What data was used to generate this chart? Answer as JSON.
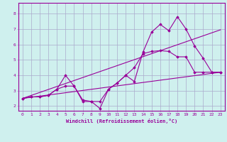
{
  "background_color": "#cff0ee",
  "grid_color": "#aaaacc",
  "line_color": "#990099",
  "marker_color": "#990099",
  "xlabel": "Windchill (Refroidissement éolien,°C)",
  "xlabel_color": "#990099",
  "xlim": [
    -0.5,
    23.5
  ],
  "ylim": [
    1.7,
    8.7
  ],
  "yticks": [
    2,
    3,
    4,
    5,
    6,
    7,
    8
  ],
  "xticks": [
    0,
    1,
    2,
    3,
    4,
    5,
    6,
    7,
    8,
    9,
    10,
    11,
    12,
    13,
    14,
    15,
    16,
    17,
    18,
    19,
    20,
    21,
    22,
    23
  ],
  "series": [
    {
      "x": [
        0,
        1,
        2,
        3,
        4,
        5,
        6,
        7,
        8,
        9,
        10,
        11,
        12,
        13,
        14,
        15,
        16,
        17,
        18,
        19,
        20,
        21,
        22,
        23
      ],
      "y": [
        2.5,
        2.6,
        2.6,
        2.7,
        3.1,
        4.0,
        3.3,
        2.3,
        2.3,
        1.85,
        3.1,
        3.5,
        4.0,
        3.6,
        5.5,
        6.8,
        7.3,
        6.9,
        7.8,
        7.0,
        5.9,
        5.1,
        4.2,
        4.2
      ],
      "marker": true
    },
    {
      "x": [
        0,
        1,
        2,
        3,
        4,
        5,
        6,
        7,
        8,
        9,
        10,
        11,
        12,
        13,
        14,
        15,
        16,
        17,
        18,
        19,
        20,
        21,
        22,
        23
      ],
      "y": [
        2.5,
        2.6,
        2.6,
        2.7,
        3.1,
        3.3,
        3.3,
        2.4,
        2.3,
        2.3,
        3.1,
        3.5,
        4.0,
        4.5,
        5.4,
        5.55,
        5.6,
        5.55,
        5.2,
        5.2,
        4.2,
        4.2,
        4.2,
        4.2
      ],
      "marker": true
    },
    {
      "x": [
        0,
        23
      ],
      "y": [
        2.5,
        4.2
      ],
      "marker": false
    },
    {
      "x": [
        0,
        23
      ],
      "y": [
        2.5,
        6.95
      ],
      "marker": false
    }
  ]
}
